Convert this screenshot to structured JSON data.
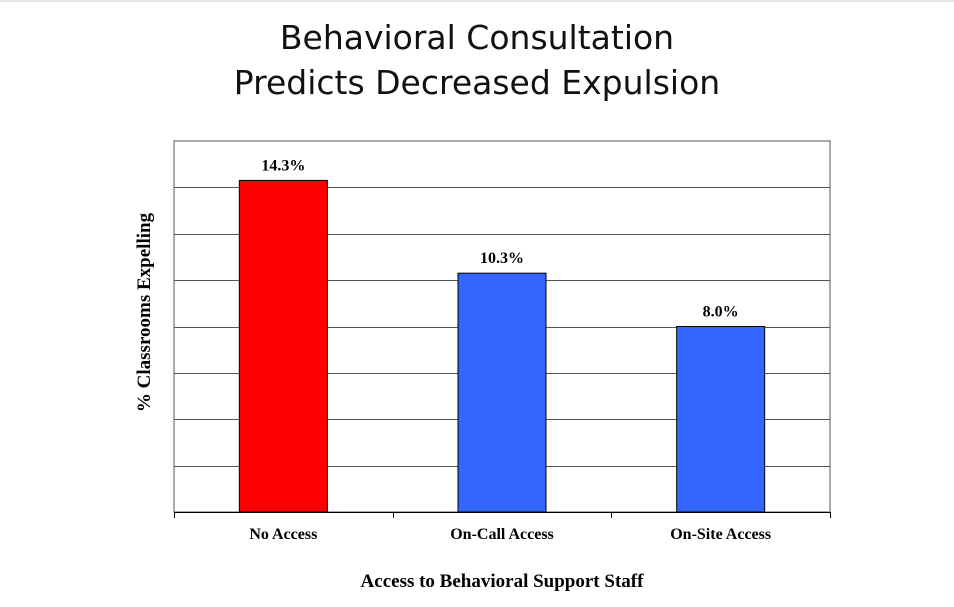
{
  "title_lines": [
    "Behavioral Consultation",
    "Predicts Decreased Expulsion"
  ],
  "chart_data": {
    "type": "bar",
    "title": "Behavioral Consultation Predicts Decreased Expulsion",
    "xlabel": "Access to Behavioral Support Staff",
    "ylabel": "% Classrooms Expelling",
    "categories": [
      "No Access",
      "On-Call Access",
      "On-Site Access"
    ],
    "values": [
      14.3,
      10.3,
      8.0
    ],
    "data_labels": [
      "14.3%",
      "10.3%",
      "8.0%"
    ],
    "bar_colors": [
      "#ff0000",
      "#3366ff",
      "#3366ff"
    ],
    "ylim": [
      0,
      16
    ],
    "gridline_step": 2,
    "grid": true,
    "legend": "none"
  }
}
